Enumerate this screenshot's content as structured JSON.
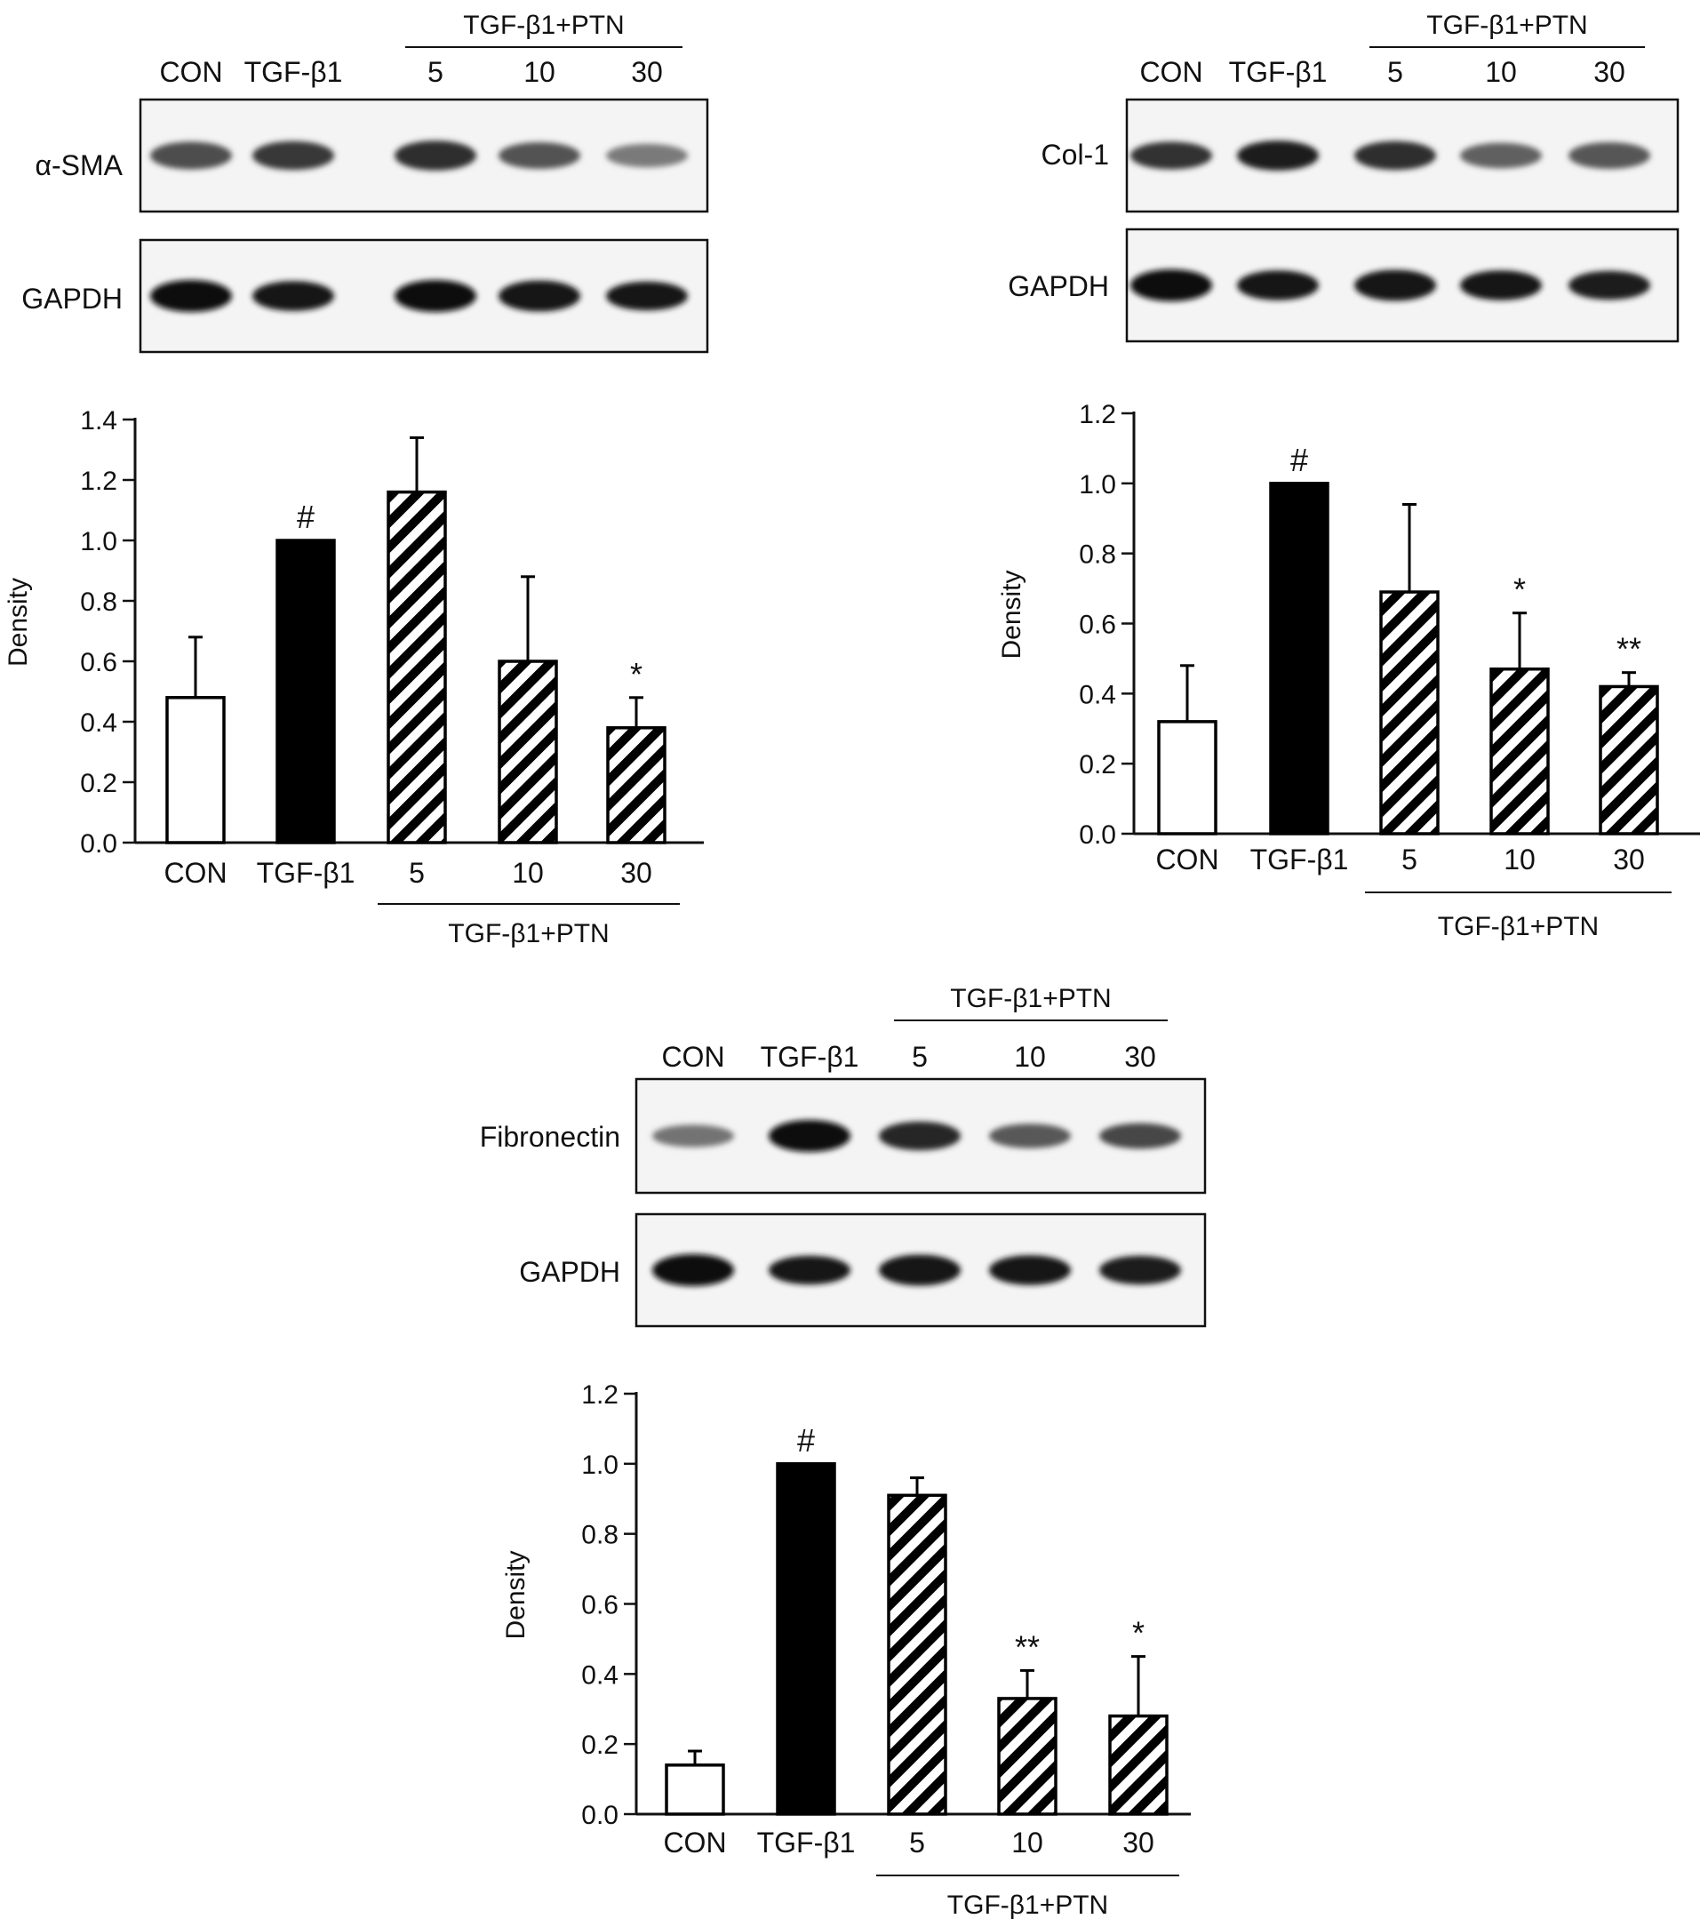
{
  "panels": [
    {
      "id": "sma",
      "blot": {
        "lane_labels": [
          "CON",
          "TGF-β1",
          "5",
          "10",
          "30"
        ],
        "group_label": "TGF-β1+PTN",
        "rows": [
          {
            "label": "α-SMA",
            "band_intensity": [
              0.7,
              0.78,
              0.82,
              0.68,
              0.52
            ],
            "band_thickness": [
              0.8,
              0.85,
              0.9,
              0.75,
              0.6
            ]
          },
          {
            "label": "GAPDH",
            "band_intensity": [
              0.95,
              0.92,
              0.95,
              0.93,
              0.9
            ],
            "band_thickness": [
              1.0,
              0.9,
              1.0,
              0.95,
              0.85
            ]
          }
        ]
      },
      "chart_data": {
        "type": "bar",
        "categories": [
          "CON",
          "TGF-β1",
          "5",
          "10",
          "30"
        ],
        "values": [
          0.48,
          1.0,
          1.16,
          0.6,
          0.38
        ],
        "errors": [
          0.2,
          0,
          0.18,
          0.28,
          0.1
        ],
        "annotations": [
          "",
          "#",
          "",
          "",
          "*"
        ],
        "fills": [
          "white",
          "black",
          "hatch",
          "hatch",
          "hatch"
        ],
        "group_label": "TGF-β1+PTN",
        "ylabel": "Density",
        "ylim": [
          0,
          1.4
        ],
        "yticks": [
          "0.0",
          "0.2",
          "0.4",
          "0.6",
          "0.8",
          "1.0",
          "1.2",
          "1.4"
        ]
      }
    },
    {
      "id": "col1",
      "blot": {
        "lane_labels": [
          "CON",
          "TGF-β1",
          "5",
          "10",
          "30"
        ],
        "group_label": "TGF-β1+PTN",
        "rows": [
          {
            "label": "Col-1",
            "band_intensity": [
              0.8,
              0.88,
              0.82,
              0.62,
              0.66
            ],
            "band_thickness": [
              0.8,
              0.9,
              0.85,
              0.7,
              0.75
            ]
          },
          {
            "label": "GAPDH",
            "band_intensity": [
              0.95,
              0.9,
              0.93,
              0.9,
              0.88
            ],
            "band_thickness": [
              1.0,
              0.9,
              0.95,
              0.9,
              0.85
            ]
          }
        ]
      },
      "chart_data": {
        "type": "bar",
        "categories": [
          "CON",
          "TGF-β1",
          "5",
          "10",
          "30"
        ],
        "values": [
          0.32,
          1.0,
          0.69,
          0.47,
          0.42
        ],
        "errors": [
          0.16,
          0,
          0.25,
          0.16,
          0.04
        ],
        "annotations": [
          "",
          "#",
          "",
          "*",
          "**"
        ],
        "fills": [
          "white",
          "black",
          "hatch",
          "hatch",
          "hatch"
        ],
        "group_label": "TGF-β1+PTN",
        "ylabel": "Density",
        "ylim": [
          0,
          1.2
        ],
        "yticks": [
          "0.0",
          "0.2",
          "0.4",
          "0.6",
          "0.8",
          "1.0",
          "1.2"
        ]
      }
    },
    {
      "id": "fn",
      "blot": {
        "lane_labels": [
          "CON",
          "TGF-β1",
          "5",
          "10",
          "30"
        ],
        "group_label": "TGF-β1+PTN",
        "rows": [
          {
            "label": "Fibronectin",
            "band_intensity": [
              0.55,
              0.95,
              0.85,
              0.65,
              0.72
            ],
            "band_thickness": [
              0.55,
              1.0,
              0.85,
              0.65,
              0.7
            ]
          },
          {
            "label": "GAPDH",
            "band_intensity": [
              0.95,
              0.9,
              0.93,
              0.9,
              0.88
            ],
            "band_thickness": [
              1.0,
              0.85,
              0.95,
              0.9,
              0.85
            ]
          }
        ]
      },
      "chart_data": {
        "type": "bar",
        "categories": [
          "CON",
          "TGF-β1",
          "5",
          "10",
          "30"
        ],
        "values": [
          0.14,
          1.0,
          0.91,
          0.33,
          0.28
        ],
        "errors": [
          0.04,
          0,
          0.05,
          0.08,
          0.17
        ],
        "annotations": [
          "",
          "#",
          "",
          "**",
          "*"
        ],
        "fills": [
          "white",
          "black",
          "hatch",
          "hatch",
          "hatch"
        ],
        "group_label": "TGF-β1+PTN",
        "ylabel": "Density",
        "ylim": [
          0,
          1.2
        ],
        "yticks": [
          "0.0",
          "0.2",
          "0.4",
          "0.6",
          "0.8",
          "1.0",
          "1.2"
        ]
      }
    }
  ]
}
